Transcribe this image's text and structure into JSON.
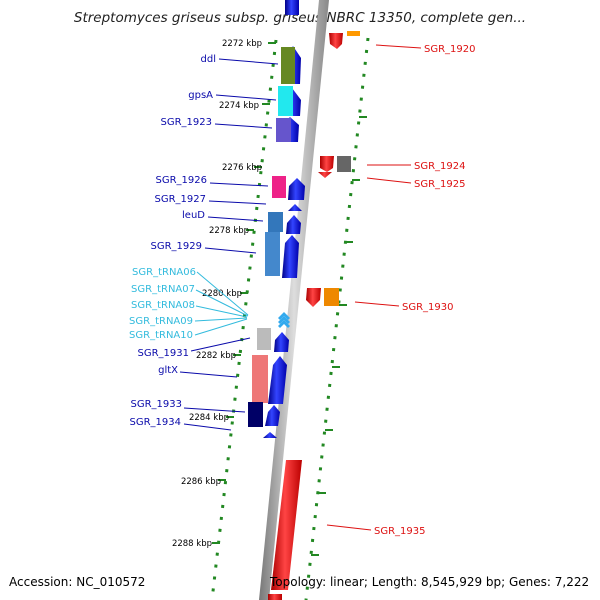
{
  "title": "Streptomyces griseus subsp. griseus NBRC 13350, complete gen...",
  "footer": {
    "accession": "Accession: NC_010572",
    "summary": "Topology: linear; Length: 8,545,929 bp; Genes: 7,222"
  },
  "colors": {
    "left_label": "#0a0aaa",
    "rna_label": "#33bbdd",
    "right_label": "#dd1111",
    "track_dots": "#228822",
    "backbone": "#999999"
  },
  "scale_labels": [
    "2272 kbp",
    "2274 kbp",
    "2276 kbp",
    "2278 kbp",
    "2280 kbp",
    "2282 kbp",
    "2284 kbp",
    "2286 kbp",
    "2288 kbp"
  ],
  "left_labels": [
    {
      "text": "ddl",
      "kind": "gene"
    },
    {
      "text": "gpsA",
      "kind": "gene"
    },
    {
      "text": "SGR_1923",
      "kind": "gene"
    },
    {
      "text": "SGR_1926",
      "kind": "gene"
    },
    {
      "text": "SGR_1927",
      "kind": "gene"
    },
    {
      "text": "leuD",
      "kind": "gene"
    },
    {
      "text": "SGR_1929",
      "kind": "gene"
    },
    {
      "text": "SGR_tRNA06",
      "kind": "rna"
    },
    {
      "text": "SGR_tRNA07",
      "kind": "rna"
    },
    {
      "text": "SGR_tRNA08",
      "kind": "rna"
    },
    {
      "text": "SGR_tRNA09",
      "kind": "rna"
    },
    {
      "text": "SGR_tRNA10",
      "kind": "rna"
    },
    {
      "text": "SGR_1931",
      "kind": "gene"
    },
    {
      "text": "gltX",
      "kind": "gene"
    },
    {
      "text": "SGR_1933",
      "kind": "gene"
    },
    {
      "text": "SGR_1934",
      "kind": "gene"
    }
  ],
  "right_labels": [
    {
      "text": "SGR_1920"
    },
    {
      "text": "SGR_1924"
    },
    {
      "text": "SGR_1925"
    },
    {
      "text": "SGR_1930"
    },
    {
      "text": "SGR_1935"
    }
  ]
}
